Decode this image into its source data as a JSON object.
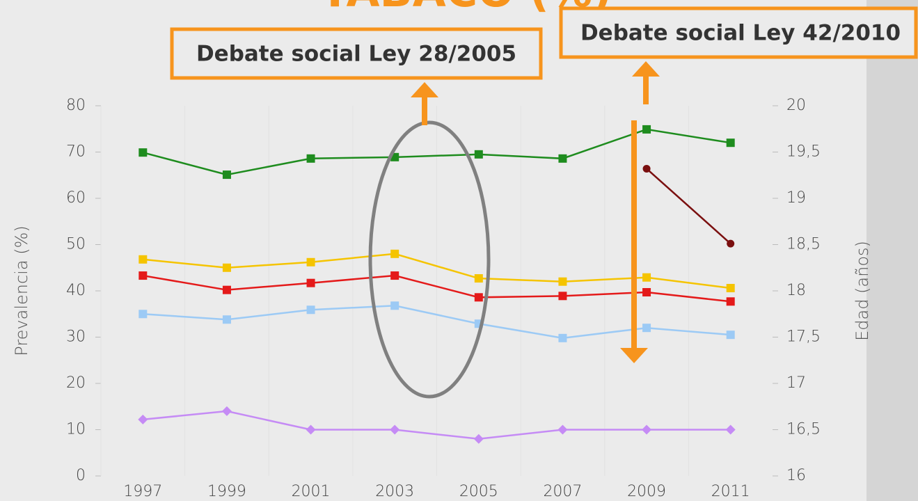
{
  "chart_data": {
    "type": "line",
    "title": "TABACO (%)",
    "y_label": "Prevalencia (%)",
    "y2_label": "Edad (años)",
    "annotations": [
      "Debate social Ley 28/2005",
      "Debate social Ley 42/2010"
    ],
    "categories": [
      "1997",
      "1999",
      "2001",
      "2003",
      "2005",
      "2007",
      "2009",
      "2011"
    ],
    "ylim": [
      0,
      80
    ],
    "yticks": [
      0,
      10,
      20,
      30,
      40,
      50,
      60,
      70,
      80
    ],
    "y2lim": [
      16,
      20
    ],
    "y2ticks": [
      16,
      {
        "value": 16.5,
        "label": "16,5"
      },
      17,
      {
        "value": 17.5,
        "label": "17,5"
      },
      18,
      {
        "value": 18.5,
        "label": "18,5"
      },
      19,
      {
        "value": 19.5,
        "label": "19,5"
      },
      20
    ],
    "series": [
      {
        "color": "#1e8c1e",
        "marker": "square",
        "values": [
          69.9,
          65.1,
          68.6,
          68.9,
          69.5,
          68.6,
          74.9,
          72.0
        ]
      },
      {
        "color": "#f5c400",
        "marker": "square",
        "values": [
          46.8,
          45.0,
          46.2,
          48.0,
          42.7,
          42.0,
          42.9,
          40.6
        ]
      },
      {
        "color": "#e41a1a",
        "marker": "square",
        "values": [
          43.3,
          40.2,
          41.7,
          43.3,
          38.6,
          38.9,
          39.7,
          37.7
        ]
      },
      {
        "color": "#9ccaf5",
        "marker": "square",
        "values": [
          35.0,
          33.8,
          35.9,
          36.8,
          32.9,
          29.8,
          32.0,
          30.5
        ]
      },
      {
        "color": "#c58bf5",
        "marker": "diamond",
        "values": [
          12.2,
          14.0,
          10.0,
          10.0,
          8.0,
          10.0,
          10.0,
          10.0
        ]
      },
      {
        "color": "#7a0f0f",
        "marker": "circle",
        "axis": "y2",
        "values": [
          null,
          null,
          null,
          null,
          null,
          null,
          19.32,
          18.51
        ]
      }
    ]
  }
}
